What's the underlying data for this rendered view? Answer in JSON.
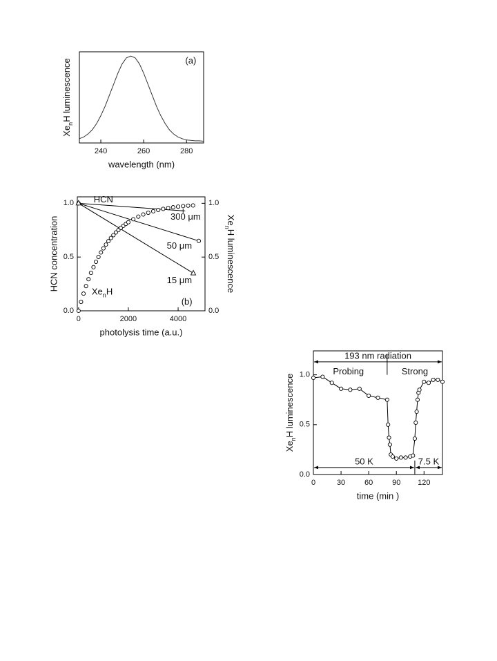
{
  "chart_data": [
    {
      "type": "line",
      "ylabel_parts": [
        "Xe",
        "n",
        "H luminescence"
      ],
      "xlabel": "wavelength (nm)",
      "x": [
        230,
        232,
        234,
        236,
        238,
        240,
        242,
        244,
        246,
        248,
        250,
        252,
        254,
        256,
        258,
        260,
        262,
        264,
        266,
        268,
        270,
        272,
        274,
        276,
        278,
        280,
        282,
        284,
        286,
        288
      ],
      "series": [
        {
          "color": "#333333",
          "values": [
            0.03,
            0.05,
            0.085,
            0.135,
            0.206,
            0.3,
            0.41,
            0.54,
            0.67,
            0.8,
            0.91,
            0.98,
            1.0,
            0.98,
            0.91,
            0.8,
            0.67,
            0.54,
            0.41,
            0.3,
            0.21,
            0.135,
            0.085,
            0.05,
            0.03,
            0.015,
            0.01,
            0.005,
            0.005,
            0.0
          ]
        }
      ],
      "xlim": [
        230,
        288
      ],
      "ylim": [
        -0.02,
        1.05
      ],
      "xticks": [
        240,
        260,
        280
      ],
      "annotations": [
        {
          "text": "(a)",
          "x": 282,
          "y": 0.94
        }
      ]
    },
    {
      "type": "line",
      "ylabel": "HCN concentration",
      "y2label_parts": [
        "Xe",
        "n",
        "H luminescence"
      ],
      "xlabel": "photolysis time (a.u.)",
      "series": [
        {
          "color": "#000000",
          "marker": "+",
          "x": [
            0,
            4200
          ],
          "values": [
            1.0,
            0.93
          ]
        },
        {
          "color": "#000000",
          "marker": "o",
          "x": [
            0,
            4830
          ],
          "values": [
            1.0,
            0.65
          ]
        },
        {
          "color": "#000000",
          "marker": "^",
          "x": [
            0,
            4610
          ],
          "values": [
            1.0,
            0.35
          ]
        },
        {
          "color": "#000000",
          "marker": "o",
          "line": false,
          "axis": "y2",
          "x": [
            0,
            100,
            200,
            300,
            400,
            500,
            600,
            700,
            800,
            900,
            1000,
            1100,
            1200,
            1300,
            1400,
            1500,
            1600,
            1700,
            1800,
            1900,
            2000,
            2200,
            2400,
            2600,
            2800,
            3000,
            3200,
            3400,
            3600,
            3800,
            4000,
            4200,
            4400,
            4600
          ],
          "values": [
            0,
            0.083,
            0.16,
            0.23,
            0.294,
            0.353,
            0.406,
            0.456,
            0.501,
            0.543,
            0.581,
            0.616,
            0.648,
            0.677,
            0.704,
            0.729,
            0.751,
            0.772,
            0.791,
            0.808,
            0.824,
            0.852,
            0.876,
            0.896,
            0.912,
            0.926,
            0.938,
            0.948,
            0.956,
            0.963,
            0.969,
            0.974,
            0.978,
            0.98
          ]
        }
      ],
      "xlim": [
        -50,
        5080
      ],
      "ylim": [
        0,
        1.06
      ],
      "y2lim": [
        0,
        1.06
      ],
      "xticks": [
        0,
        2000,
        4000
      ],
      "yticks": [
        {
          "value": 0,
          "label": "0.0"
        },
        {
          "value": 0.5,
          "label": "0.5"
        },
        {
          "value": 1,
          "label": "1.0"
        }
      ],
      "y2ticks": [
        {
          "value": 0,
          "label": "0.0"
        },
        {
          "value": 0.5,
          "label": "0.5"
        },
        {
          "value": 1,
          "label": "1.0"
        }
      ],
      "annotations": [
        {
          "text": "HCN",
          "x": 1000,
          "y": 1.03
        },
        {
          "text": "300 μm",
          "x": 4300,
          "y": 0.87
        },
        {
          "text": "50 μm",
          "x": 4050,
          "y": 0.6
        },
        {
          "text": "15 μm",
          "x": 4050,
          "y": 0.28
        },
        {
          "text": "(b)",
          "x": 4350,
          "y": 0.08
        },
        {
          "parts": [
            "Xe",
            "n",
            "H"
          ],
          "x": 950,
          "y": 0.17
        }
      ]
    },
    {
      "type": "line",
      "ylabel_parts": [
        "Xe",
        "n",
        "H luminescence"
      ],
      "xlabel": "time (min )",
      "x": [
        0,
        10,
        20,
        30,
        40,
        50,
        60,
        70,
        80,
        81,
        82,
        83,
        84,
        86,
        90,
        95,
        100,
        105,
        108,
        110,
        111,
        112,
        113,
        114,
        115,
        120,
        125,
        130,
        135,
        140
      ],
      "series": [
        {
          "color": "#000000",
          "marker": "o",
          "values": [
            0.97,
            0.98,
            0.92,
            0.86,
            0.85,
            0.86,
            0.79,
            0.77,
            0.75,
            0.5,
            0.37,
            0.3,
            0.2,
            0.18,
            0.16,
            0.17,
            0.17,
            0.18,
            0.19,
            0.36,
            0.52,
            0.63,
            0.75,
            0.82,
            0.85,
            0.93,
            0.92,
            0.95,
            0.95,
            0.93
          ]
        }
      ],
      "xlim": [
        0,
        140
      ],
      "ylim": [
        0,
        1.24
      ],
      "xticks": [
        0,
        30,
        60,
        90,
        120
      ],
      "yticks": [
        {
          "value": 0,
          "label": "0.0"
        },
        {
          "value": 0.5,
          "label": "0.5"
        },
        {
          "value": 1,
          "label": "1.0"
        }
      ],
      "spans": [
        {
          "text": "193 nm radiation",
          "x": [
            0,
            140
          ],
          "y": 1.13
        },
        {
          "text": "50 K",
          "x": [
            0,
            110
          ],
          "y": 0.07
        },
        {
          "text": "7.5 K",
          "x": [
            110,
            140
          ],
          "y": 0.07
        }
      ],
      "dividers": [
        {
          "x": 80,
          "y": [
            1.0,
            1.2
          ]
        },
        {
          "x": 110,
          "y": [
            0,
            0.14
          ]
        }
      ],
      "annotations": [
        {
          "text": "Probing",
          "x": 38,
          "y": 1.03
        },
        {
          "text": "Strong",
          "x": 110,
          "y": 1.03
        }
      ]
    }
  ]
}
